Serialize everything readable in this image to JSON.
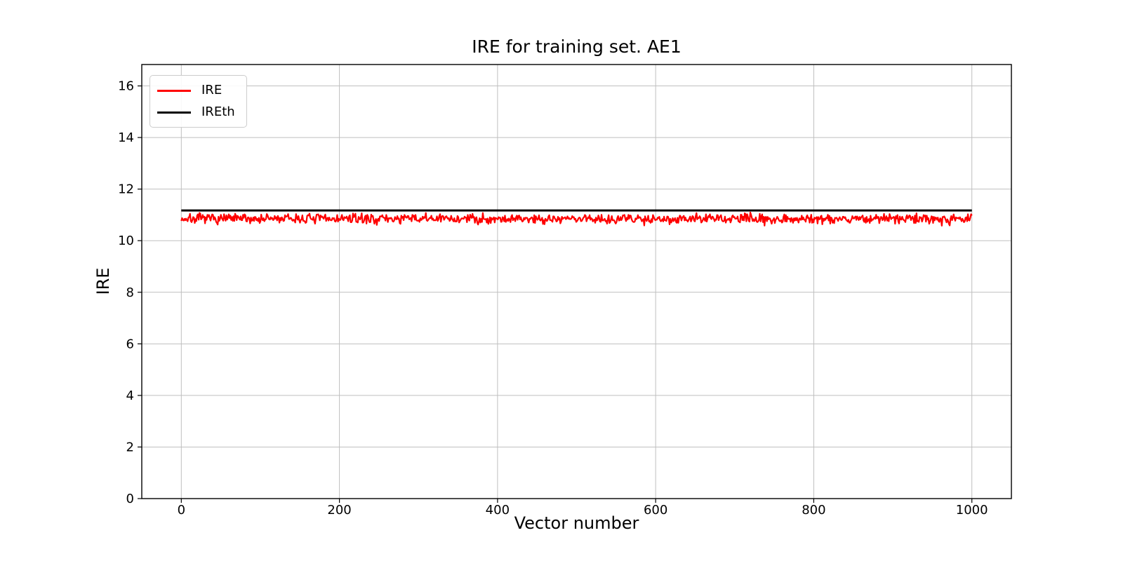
{
  "chart_data": {
    "type": "line",
    "title": "IRE for training set. AE1",
    "xlabel": "Vector number",
    "ylabel": "IRE",
    "xlim": [
      -50,
      1050
    ],
    "ylim": [
      0,
      16.83
    ],
    "x_ticks": [
      0,
      200,
      400,
      600,
      800,
      1000
    ],
    "y_ticks": [
      0,
      2,
      4,
      6,
      8,
      10,
      12,
      14,
      16
    ],
    "grid": true,
    "grid_color": "#bfbfbf",
    "frame_color": "#000000",
    "background_color": "#ffffff",
    "legend_position": "upper left",
    "series": [
      {
        "name": "IRE",
        "kind": "noisy_line",
        "color": "#ff0000",
        "linewidth": 2.2,
        "x_start": 0,
        "x_end": 1000,
        "n_points": 1000,
        "mean": 10.85,
        "noise_scale": 0.19,
        "min": 10.52,
        "max": 11.13,
        "seed": 7
      },
      {
        "name": "IREth",
        "kind": "hline",
        "color": "#000000",
        "linewidth": 3,
        "value": 11.17,
        "x_start": 0,
        "x_end": 1000
      }
    ]
  }
}
